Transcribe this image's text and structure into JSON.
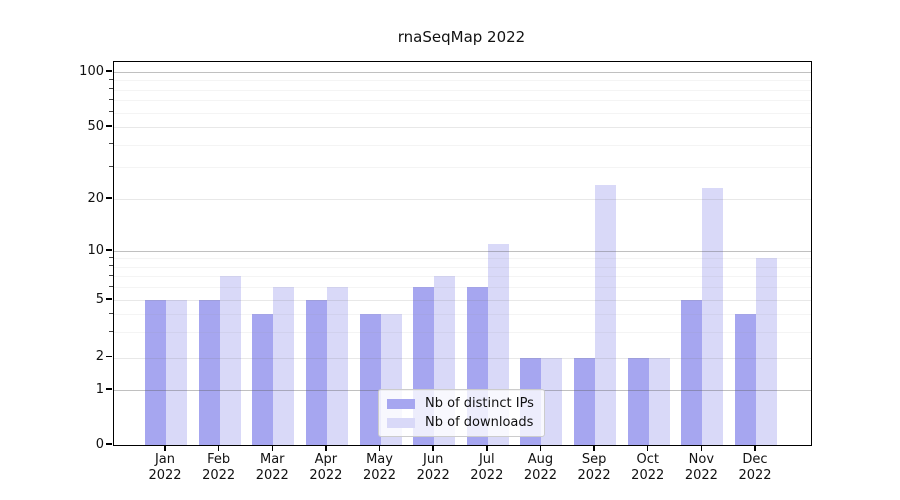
{
  "title": "rnaSeqMap 2022",
  "legend": {
    "items": [
      {
        "label": "Nb of distinct IPs",
        "color": "#a6a6f0"
      },
      {
        "label": "Nb of downloads",
        "color": "#d9d9f8"
      }
    ]
  },
  "chart_data": {
    "type": "bar",
    "title": "rnaSeqMap 2022",
    "scale": "symlog",
    "grid": true,
    "legend_position": "lower center",
    "categories": [
      "Jan",
      "Feb",
      "Mar",
      "Apr",
      "May",
      "Jun",
      "Jul",
      "Aug",
      "Sep",
      "Oct",
      "Nov",
      "Dec"
    ],
    "year": "2022",
    "yticks": [
      0,
      1,
      2,
      5,
      10,
      20,
      50,
      100
    ],
    "ylim": [
      0,
      113
    ],
    "xlabel": "",
    "ylabel": "",
    "series": [
      {
        "name": "Nb of distinct IPs",
        "color": "#a6a6f0",
        "values": [
          5,
          5,
          4,
          5,
          4,
          6,
          6,
          2,
          2,
          2,
          5,
          4
        ]
      },
      {
        "name": "Nb of downloads",
        "color": "#d9d9f8",
        "values": [
          5,
          7,
          6,
          6,
          4,
          7,
          11,
          2,
          24,
          2,
          23,
          9
        ]
      }
    ]
  }
}
